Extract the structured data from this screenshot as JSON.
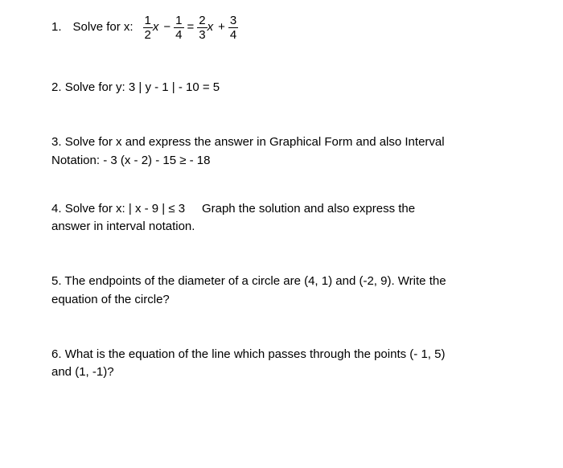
{
  "page": {
    "background_color": "#ffffff",
    "text_color": "#000000",
    "font_family": "Arial",
    "base_fontsize": 15
  },
  "problems": {
    "p1": {
      "number": "1.",
      "label": "Solve for x:",
      "eq": {
        "lhs": {
          "f1": {
            "n": "1",
            "d": "2"
          },
          "var1": "x",
          "op1": "−",
          "f2": {
            "n": "1",
            "d": "4"
          }
        },
        "eqsym": "=",
        "rhs": {
          "f3": {
            "n": "2",
            "d": "3"
          },
          "var2": "x",
          "op2": "+",
          "f4": {
            "n": "3",
            "d": "4"
          }
        }
      }
    },
    "p2": {
      "number": "2.",
      "text": "Solve for y:   3 | y - 1 | - 10 = 5"
    },
    "p3": {
      "number": "3.",
      "line1": "Solve for x and express the answer in Graphical Form and also Interval",
      "line2": "Notation:     - 3 (x - 2) - 15  ≥  - 18"
    },
    "p4": {
      "number": "4.",
      "line1a": "Solve for x:   | x - 9 |  ≤  3",
      "line1b": "Graph the solution and also express the",
      "line2": "answer in interval notation."
    },
    "p5": {
      "number": "5.",
      "line1": "The endpoints of the diameter of a circle are (4, 1) and (-2, 9). Write the",
      "line2": "equation of the circle?"
    },
    "p6": {
      "number": "6.",
      "line1": "What is the equation of the line which passes through the points (- 1, 5)",
      "line2": "and (1, -1)?"
    }
  }
}
